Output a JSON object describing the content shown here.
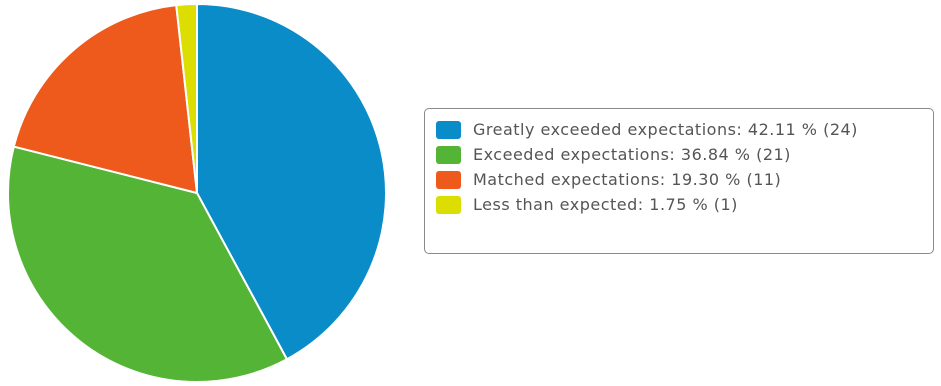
{
  "chart_data": {
    "type": "pie",
    "title": "",
    "legend_position": "right",
    "slices": [
      {
        "label": "Greatly exceeded expectations",
        "percent": 42.11,
        "count": 24,
        "color": "#0a8cc8",
        "legend_text": "Greatly exceeded expectations: 42.11 % (24)"
      },
      {
        "label": "Exceeded expectations",
        "percent": 36.84,
        "count": 21,
        "color": "#54b435",
        "legend_text": "Exceeded expectations: 36.84 % (21)"
      },
      {
        "label": "Matched expectations",
        "percent": 19.3,
        "count": 11,
        "color": "#ee5a1c",
        "legend_text": "Matched expectations: 19.30 % (11)"
      },
      {
        "label": "Less than expected",
        "percent": 1.75,
        "count": 1,
        "color": "#dcdd00",
        "legend_text": "Less than expected: 1.75 % (1)"
      }
    ]
  }
}
